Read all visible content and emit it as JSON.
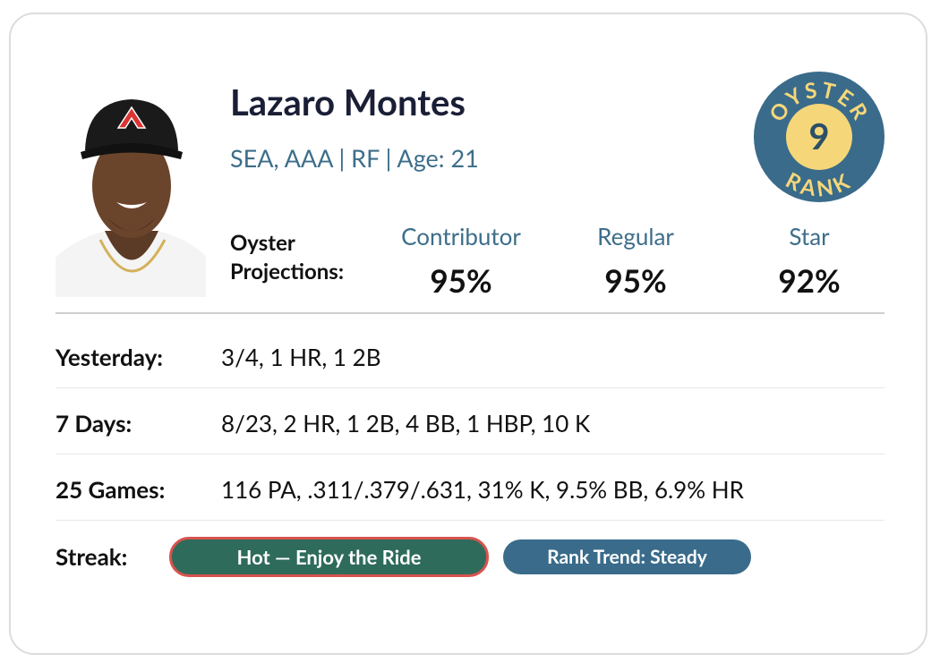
{
  "player": {
    "name": "Lazaro Montes",
    "meta": "SEA, AAA | RF | Age: 21"
  },
  "badge": {
    "top": "OYSTER",
    "rank": "9",
    "bottom": "RANK"
  },
  "projections": {
    "label_line1": "Oyster",
    "label_line2": "Projections:",
    "items": [
      {
        "label": "Contributor",
        "value": "95%"
      },
      {
        "label": "Regular",
        "value": "95%"
      },
      {
        "label": "Star",
        "value": "92%"
      }
    ]
  },
  "stats": [
    {
      "label": "Yesterday:",
      "value": "3/4, 1 HR, 1 2B"
    },
    {
      "label": "7 Days:",
      "value": "8/23, 2 HR, 1 2B, 4 BB, 1 HBP, 10 K"
    },
    {
      "label": "25 Games:",
      "value": "116 PA, .311/.379/.631, 31% K, 9.5% BB, 6.9% HR"
    }
  ],
  "streak": {
    "label": "Streak:",
    "hot": "Hot — Enjoy the Ride",
    "trend": "Rank Trend: Steady"
  }
}
